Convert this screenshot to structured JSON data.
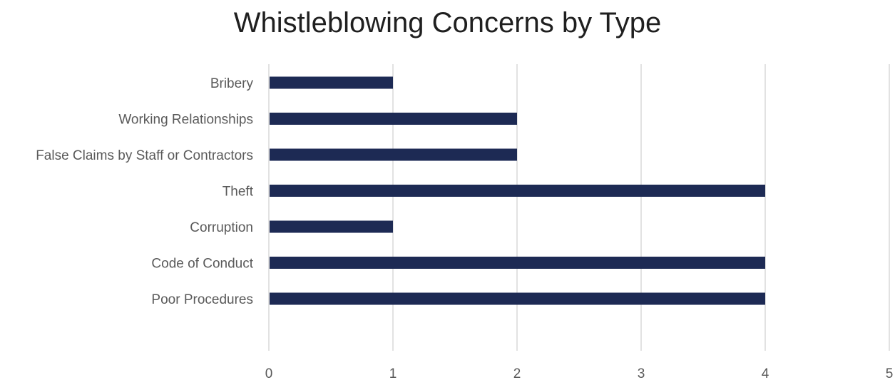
{
  "chart_data": {
    "type": "bar",
    "orientation": "horizontal",
    "title": "Whistleblowing Concerns by Type",
    "categories": [
      "Bribery",
      "Working Relationships",
      "False Claims by Staff or Contractors",
      "Theft",
      "Corruption",
      "Code of Conduct",
      "Poor Procedures"
    ],
    "values": [
      1,
      2,
      2,
      4,
      1,
      4,
      4
    ],
    "xlim": [
      0,
      5
    ],
    "xticks": [
      "0",
      "1",
      "2",
      "3",
      "4",
      "5"
    ],
    "grid": true,
    "legend": "none",
    "colors": {
      "bar": "#1d2a54",
      "grid": "#d9d9d9",
      "text": "#595959"
    }
  }
}
